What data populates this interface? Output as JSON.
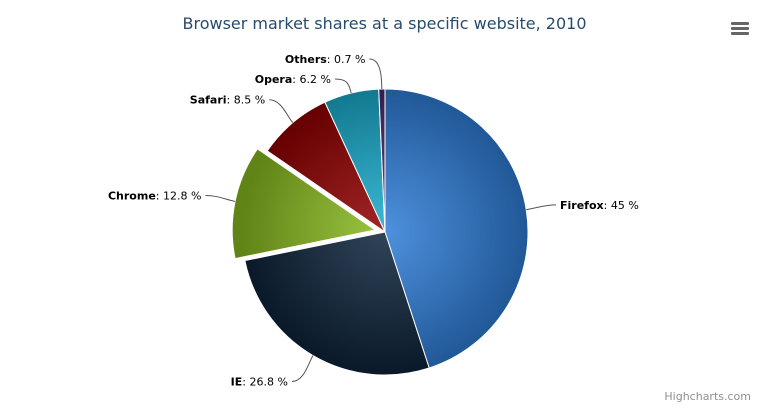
{
  "chart_data": {
    "type": "pie",
    "title": "Browser market shares at a specific website, 2010",
    "value_suffix": " %",
    "slices": [
      {
        "name": "Firefox",
        "value": 45,
        "color": "#2f7ed8",
        "sliced": false
      },
      {
        "name": "IE",
        "value": 26.8,
        "color": "#0d233a",
        "sliced": false
      },
      {
        "name": "Chrome",
        "value": 12.8,
        "color": "#8bbc21",
        "sliced": true
      },
      {
        "name": "Safari",
        "value": 8.5,
        "color": "#910000",
        "sliced": false
      },
      {
        "name": "Opera",
        "value": 6.2,
        "color": "#1aadce",
        "sliced": false
      },
      {
        "name": "Others",
        "value": 0.7,
        "color": "#492970",
        "sliced": false
      }
    ]
  },
  "menu_icon": "hamburger-menu-icon",
  "credits": "Highcharts.com"
}
